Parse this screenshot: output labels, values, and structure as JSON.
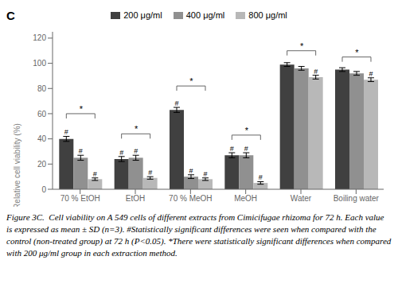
{
  "chart_data": {
    "type": "bar",
    "title": "C",
    "ylabel": "Relative cell viability (%)",
    "categories": [
      "70 % EtOH",
      "EtOH",
      "70 % MeOH",
      "MeOH",
      "Water",
      "Boiling water"
    ],
    "series": [
      {
        "name": "200 μg/ml",
        "color": "#404040",
        "values": [
          40,
          24,
          63,
          27,
          99,
          95
        ],
        "errors": [
          2.0,
          2.0,
          2.0,
          2.0,
          1.5,
          1.5
        ]
      },
      {
        "name": "400 μg/ml",
        "color": "#909090",
        "values": [
          25,
          25,
          10,
          27,
          96,
          92
        ],
        "errors": [
          2.0,
          2.0,
          1.5,
          2.0,
          1.5,
          1.5
        ]
      },
      {
        "name": "800 μg/ml",
        "color": "#b8b8b8",
        "values": [
          8,
          9,
          8,
          5,
          89,
          87
        ],
        "errors": [
          1.0,
          1.0,
          1.0,
          1.0,
          1.5,
          1.5
        ]
      }
    ],
    "ylim": [
      0,
      125
    ],
    "yticks": [
      0,
      20,
      40,
      60,
      80,
      100,
      120
    ],
    "grid": false,
    "legend": "top",
    "annotations": [
      {
        "category": "70 % EtOH",
        "y": 60,
        "text": "*"
      },
      {
        "category": "EtOH",
        "y": 44,
        "text": "*"
      },
      {
        "category": "70 % MeOH",
        "y": 82,
        "text": "*"
      },
      {
        "category": "MeOH",
        "y": 43,
        "text": "*"
      },
      {
        "category": "Water",
        "y": 110,
        "text": "*"
      },
      {
        "category": "Boiling water",
        "y": 105,
        "text": "*"
      },
      {
        "category": "70 % EtOH",
        "series": "200 μg/ml",
        "text": "#"
      },
      {
        "category": "70 % EtOH",
        "series": "400 μg/ml",
        "text": "#"
      },
      {
        "category": "70 % EtOH",
        "series": "800 μg/ml",
        "text": "#"
      },
      {
        "category": "EtOH",
        "series": "200 μg/ml",
        "text": "#"
      },
      {
        "category": "EtOH",
        "series": "400 μg/ml",
        "text": "#"
      },
      {
        "category": "EtOH",
        "series": "800 μg/ml",
        "text": "#"
      },
      {
        "category": "70 % MeOH",
        "series": "200 μg/ml",
        "text": "#"
      },
      {
        "category": "70 % MeOH",
        "series": "400 μg/ml",
        "text": "#"
      },
      {
        "category": "70 % MeOH",
        "series": "800 μg/ml",
        "text": "#"
      },
      {
        "category": "MeOH",
        "series": "200 μg/ml",
        "text": "#"
      },
      {
        "category": "MeOH",
        "series": "400 μg/ml",
        "text": "#"
      },
      {
        "category": "MeOH",
        "series": "800 μg/ml",
        "text": "#"
      },
      {
        "category": "Water",
        "series": "800 μg/ml",
        "text": "#"
      },
      {
        "category": "Boiling water",
        "series": "800 μg/ml",
        "text": "#"
      }
    ],
    "caption": "Figure 3C.  Cell viability on A 549 cells of different extracts from Cimicifugae rhizoma for 72 h. Each value is expressed as mean ± SD (n=3). #Statistically significant differences were seen when compared with the control (non-treated group) at 72 h (P<0.05). *There were statistically significant differences when compared with 200 μg/ml group in each extraction method."
  }
}
